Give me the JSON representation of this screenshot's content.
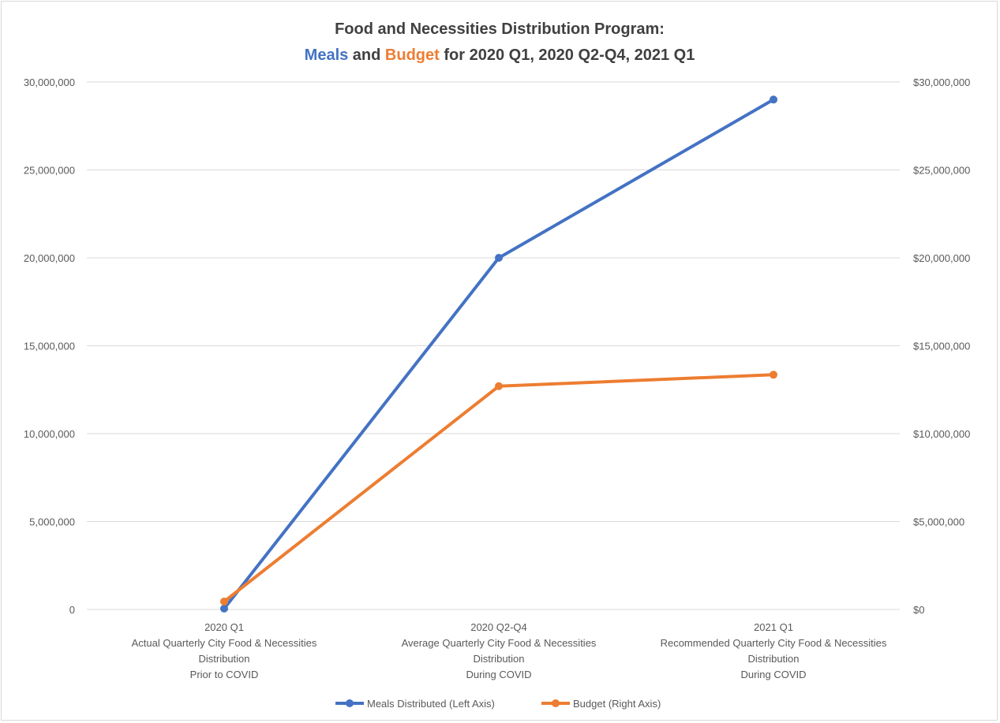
{
  "title": {
    "line1": "Food and Necessities Distribution Program:",
    "line2_part1": "Meals",
    "line2_part2": " and ",
    "line2_part3": "Budget",
    "line2_part4": " for 2020 Q1, 2020 Q2-Q4, 2021 Q1"
  },
  "colors": {
    "meals": "#4472c4",
    "budget": "#ed7d31",
    "title": "#404040",
    "grid": "#d9d9d9"
  },
  "chart_data": {
    "type": "line",
    "categories": [
      [
        "2020 Q1",
        "Actual Quarterly City Food & Necessities",
        "Distribution",
        "Prior to COVID"
      ],
      [
        "2020 Q2-Q4",
        "Average Quarterly City Food & Necessities",
        "Distribution",
        "During COVID"
      ],
      [
        "2021 Q1",
        "Recommended Quarterly City Food & Necessities",
        "Distribution",
        "During COVID"
      ]
    ],
    "series": [
      {
        "name": "Meals Distributed (Left Axis)",
        "axis": "left",
        "values": [
          50000,
          20000000,
          29000000
        ]
      },
      {
        "name": "Budget (Right Axis)",
        "axis": "right",
        "values": [
          450000,
          12700000,
          13350000
        ]
      }
    ],
    "left_axis": {
      "ylim": [
        0,
        30000000
      ],
      "ticks": [
        "0",
        "5,000,000",
        "10,000,000",
        "15,000,000",
        "20,000,000",
        "25,000,000",
        "30,000,000"
      ]
    },
    "right_axis": {
      "ylim": [
        0,
        30000000
      ],
      "ticks": [
        "$0",
        "$5,000,000",
        "$10,000,000",
        "$15,000,000",
        "$20,000,000",
        "$25,000,000",
        "$30,000,000"
      ]
    },
    "grid": true,
    "legend_position": "bottom"
  }
}
